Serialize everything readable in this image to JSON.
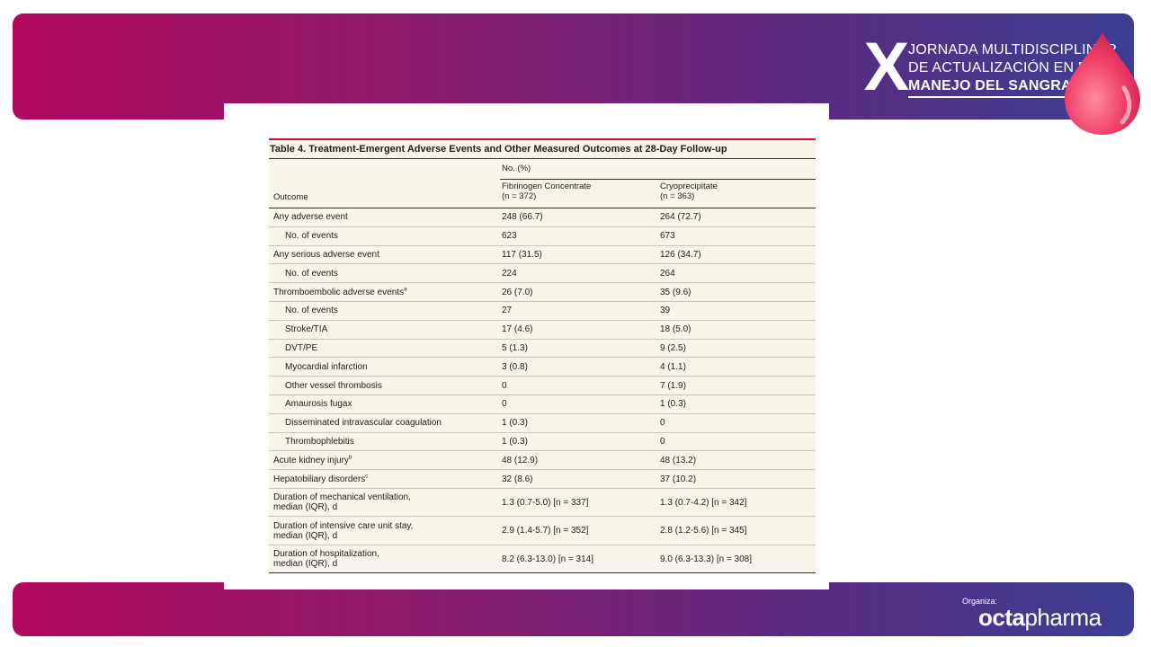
{
  "brand": {
    "event_logo": {
      "mark": "X",
      "line1": "JORNADA MULTIDISCIPLINAR",
      "line2": "DE ACTUALIZACIÓN EN EL",
      "line3": "MANEJO DEL SANGRADO"
    },
    "organiza_label": "Organiza:",
    "sponsor": {
      "part1": "octa",
      "part2": "pharma"
    },
    "colors": {
      "gradient_start": "#b1095d",
      "gradient_mid": "#5b2a7f",
      "gradient_end": "#3b3f93",
      "drop": "#f0406a",
      "table_rule": "#c8102e"
    }
  },
  "table": {
    "title": "Table 4. Treatment-Emergent Adverse Events and Other Measured Outcomes at 28-Day Follow-up",
    "group_header": "No. (%)",
    "col_outcome": "Outcome",
    "col1": {
      "name": "Fibrinogen Concentrate",
      "n": "(n = 372)"
    },
    "col2": {
      "name": "Cryoprecipitate",
      "n": "(n = 363)"
    },
    "rows": [
      {
        "label": "Any adverse event",
        "sup": "",
        "v1": "248 (66.7)",
        "v2": "264 (72.7)"
      },
      {
        "label": "No. of events",
        "sup": "",
        "v1": "623",
        "v2": "673"
      },
      {
        "label": "Any serious adverse event",
        "sup": "",
        "v1": "117 (31.5)",
        "v2": "126 (34.7)"
      },
      {
        "label": "No. of events",
        "sup": "",
        "v1": "224",
        "v2": "264"
      },
      {
        "label": "Thromboembolic adverse events",
        "sup": "a",
        "v1": "26 (7.0)",
        "v2": "35 (9.6)"
      },
      {
        "label": "No. of events",
        "sup": "",
        "v1": "27",
        "v2": "39"
      },
      {
        "label": "Stroke/TIA",
        "sup": "",
        "v1": "17 (4.6)",
        "v2": "18 (5.0)"
      },
      {
        "label": "DVT/PE",
        "sup": "",
        "v1": "5 (1.3)",
        "v2": "9 (2.5)"
      },
      {
        "label": "Myocardial infarction",
        "sup": "",
        "v1": "3 (0.8)",
        "v2": "4 (1.1)"
      },
      {
        "label": "Other vessel thrombosis",
        "sup": "",
        "v1": "0",
        "v2": "7 (1.9)"
      },
      {
        "label": "Amaurosis fugax",
        "sup": "",
        "v1": "0",
        "v2": "1 (0.3)"
      },
      {
        "label": "Disseminated intravascular coagulation",
        "sup": "",
        "v1": "1 (0.3)",
        "v2": "0"
      },
      {
        "label": "Thrombophlebitis",
        "sup": "",
        "v1": "1 (0.3)",
        "v2": "0"
      },
      {
        "label": "Acute kidney injury",
        "sup": "b",
        "v1": "48 (12.9)",
        "v2": "48 (13.2)"
      },
      {
        "label": "Hepatobiliary disorders",
        "sup": "c",
        "v1": "32 (8.6)",
        "v2": "37 (10.2)"
      },
      {
        "label": "Duration of mechanical ventilation,",
        "label2": "median (IQR), d",
        "sup": "",
        "v1": "1.3 (0.7-5.0) [n = 337]",
        "v2": "1.3 (0.7-4.2) [n = 342]"
      },
      {
        "label": "Duration of intensive care unit stay,",
        "label2": "median (IQR), d",
        "sup": "",
        "v1": "2.9 (1.4-5.7) [n = 352]",
        "v2": "2.8 (1.2-5.6) [n = 345]"
      },
      {
        "label": "Duration of hospitalization,",
        "label2": "median (IQR), d",
        "sup": "",
        "v1": "8.2 (6.3-13.0) [n = 314]",
        "v2": "9.0 (6.3-13.3) [n = 308]"
      }
    ]
  }
}
